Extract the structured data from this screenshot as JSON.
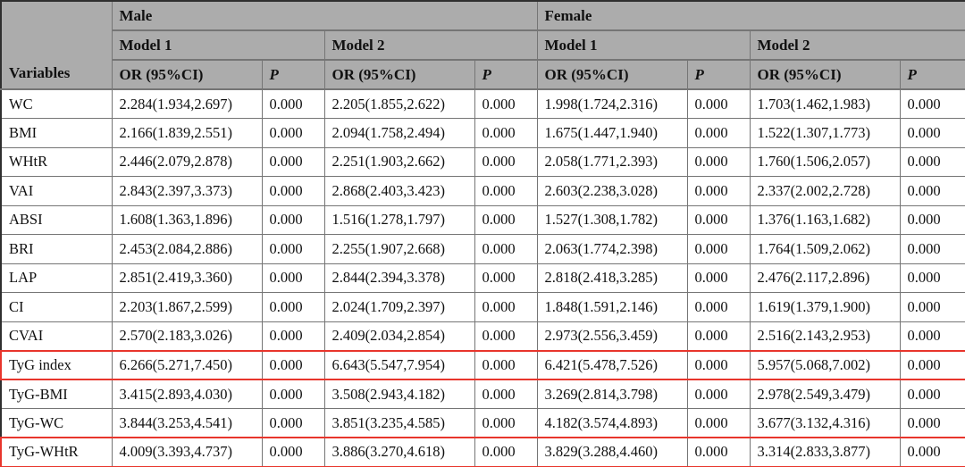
{
  "colors": {
    "header_bg": "#acacac",
    "inner_border": "#757575",
    "outer_border": "#2f2f2f",
    "highlight_border": "#e8352c",
    "text": "#111111"
  },
  "table": {
    "variables_header": "Variables",
    "groups": [
      {
        "label": "Male"
      },
      {
        "label": "Female"
      }
    ],
    "models": [
      "Model 1",
      "Model 2",
      "Model 1",
      "Model 2"
    ],
    "sub_headers": {
      "or": "OR (95%CI)",
      "p": "P"
    },
    "rows": [
      {
        "variable": "WC",
        "highlight": false,
        "cells": [
          "2.284(1.934,2.697)",
          "0.000",
          "2.205(1.855,2.622)",
          "0.000",
          "1.998(1.724,2.316)",
          "0.000",
          "1.703(1.462,1.983)",
          "0.000"
        ]
      },
      {
        "variable": "BMI",
        "highlight": false,
        "cells": [
          "2.166(1.839,2.551)",
          "0.000",
          "2.094(1.758,2.494)",
          "0.000",
          "1.675(1.447,1.940)",
          "0.000",
          "1.522(1.307,1.773)",
          "0.000"
        ]
      },
      {
        "variable": "WHtR",
        "highlight": false,
        "cells": [
          "2.446(2.079,2.878)",
          "0.000",
          "2.251(1.903,2.662)",
          "0.000",
          "2.058(1.771,2.393)",
          "0.000",
          "1.760(1.506,2.057)",
          "0.000"
        ]
      },
      {
        "variable": "VAI",
        "highlight": false,
        "cells": [
          "2.843(2.397,3.373)",
          "0.000",
          "2.868(2.403,3.423)",
          "0.000",
          "2.603(2.238,3.028)",
          "0.000",
          "2.337(2.002,2.728)",
          "0.000"
        ]
      },
      {
        "variable": "ABSI",
        "highlight": false,
        "cells": [
          "1.608(1.363,1.896)",
          "0.000",
          "1.516(1.278,1.797)",
          "0.000",
          "1.527(1.308,1.782)",
          "0.000",
          "1.376(1.163,1.682)",
          "0.000"
        ]
      },
      {
        "variable": "BRI",
        "highlight": false,
        "cells": [
          "2.453(2.084,2.886)",
          "0.000",
          "2.255(1.907,2.668)",
          "0.000",
          "2.063(1.774,2.398)",
          "0.000",
          "1.764(1.509,2.062)",
          "0.000"
        ]
      },
      {
        "variable": "LAP",
        "highlight": false,
        "cells": [
          "2.851(2.419,3.360)",
          "0.000",
          "2.844(2.394,3.378)",
          "0.000",
          "2.818(2.418,3.285)",
          "0.000",
          "2.476(2.117,2.896)",
          "0.000"
        ]
      },
      {
        "variable": "CI",
        "highlight": false,
        "cells": [
          "2.203(1.867,2.599)",
          "0.000",
          "2.024(1.709,2.397)",
          "0.000",
          "1.848(1.591,2.146)",
          "0.000",
          "1.619(1.379,1.900)",
          "0.000"
        ]
      },
      {
        "variable": "CVAI",
        "highlight": false,
        "cells": [
          "2.570(2.183,3.026)",
          "0.000",
          "2.409(2.034,2.854)",
          "0.000",
          "2.973(2.556,3.459)",
          "0.000",
          "2.516(2.143,2.953)",
          "0.000"
        ]
      },
      {
        "variable": "TyG index",
        "highlight": true,
        "cells": [
          "6.266(5.271,7.450)",
          "0.000",
          "6.643(5.547,7.954)",
          "0.000",
          "6.421(5.478,7.526)",
          "0.000",
          "5.957(5.068,7.002)",
          "0.000"
        ]
      },
      {
        "variable": "TyG-BMI",
        "highlight": false,
        "cells": [
          "3.415(2.893,4.030)",
          "0.000",
          "3.508(2.943,4.182)",
          "0.000",
          "3.269(2.814,3.798)",
          "0.000",
          "2.978(2.549,3.479)",
          "0.000"
        ]
      },
      {
        "variable": "TyG-WC",
        "highlight": false,
        "cells": [
          "3.844(3.253,4.541)",
          "0.000",
          "3.851(3.235,4.585)",
          "0.000",
          "4.182(3.574,4.893)",
          "0.000",
          "3.677(3.132,4.316)",
          "0.000"
        ]
      },
      {
        "variable": "TyG-WHtR",
        "highlight": true,
        "cells": [
          "4.009(3.393,4.737)",
          "0.000",
          "3.886(3.270,4.618)",
          "0.000",
          "3.829(3.288,4.460)",
          "0.000",
          "3.314(2.833,3.877)",
          "0.000"
        ]
      }
    ]
  }
}
